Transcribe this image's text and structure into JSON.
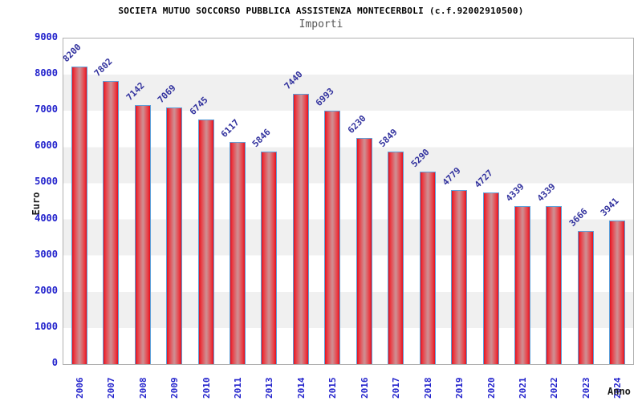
{
  "chart_data": {
    "type": "bar",
    "title": "SOCIETA MUTUO SOCCORSO PUBBLICA ASSISTENZA MONTECERBOLI (c.f.92002910500)",
    "subtitle": "Importi",
    "xlabel": "Anno",
    "ylabel": "Euro",
    "categories": [
      "2006",
      "2007",
      "2008",
      "2009",
      "2010",
      "2011",
      "2013",
      "2014",
      "2015",
      "2016",
      "2017",
      "2018",
      "2019",
      "2020",
      "2021",
      "2022",
      "2023",
      "2024"
    ],
    "values": [
      8200,
      7802,
      7142,
      7069,
      6745,
      6117,
      5846,
      7440,
      6993,
      6230,
      5849,
      5290,
      4779,
      4727,
      4339,
      4339,
      3666,
      3941
    ],
    "ylim": [
      0,
      9000
    ],
    "ytick_step": 1000,
    "grid": "horizontal-alternating-bands",
    "legend": "none",
    "colors": {
      "bar_edge": "#df1220",
      "bar_center": "#d08b8f",
      "bar_border": "#5e9fd8",
      "band_gray": "#f0f0f0",
      "band_white": "#ffffff",
      "tick_label": "#2222cc",
      "value_label": "#32329e",
      "title": "#000000",
      "subtitle": "#555555",
      "axis_title": "#1c1c1c",
      "frame_border": "#b0b0b0"
    }
  }
}
